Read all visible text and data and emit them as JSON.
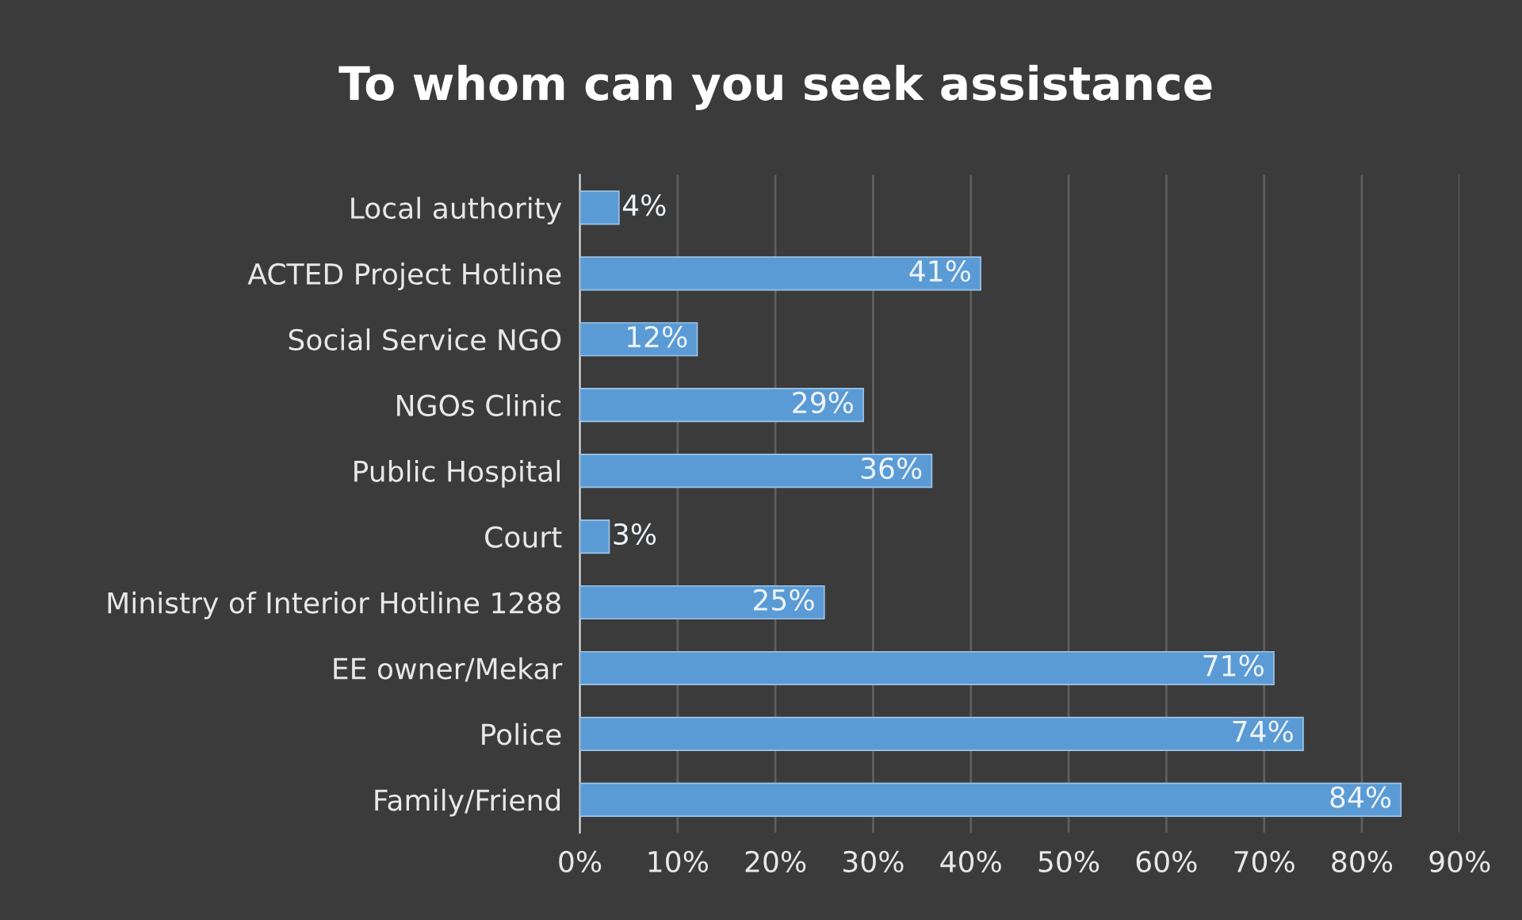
{
  "chart_data": {
    "type": "bar",
    "orientation": "horizontal",
    "title": "To whom can you seek assistance",
    "categories": [
      "Local authority",
      "ACTED Project Hotline",
      "Social Service NGO",
      "NGOs Clinic",
      "Public Hospital",
      "Court",
      "Ministry of Interior Hotline 1288",
      "EE owner/Mekar",
      "Police",
      "Family/Friend"
    ],
    "values": [
      4,
      41,
      12,
      29,
      36,
      3,
      25,
      71,
      74,
      84
    ],
    "value_labels": [
      "4%",
      "41%",
      "12%",
      "29%",
      "36%",
      "3%",
      "25%",
      "71%",
      "74%",
      "84%"
    ],
    "color": "#5b9bd5",
    "xlim": [
      0,
      90
    ],
    "xticks": [
      {
        "value": 0,
        "label": "0%"
      },
      {
        "value": 10,
        "label": "10%"
      },
      {
        "value": 20,
        "label": "20%"
      },
      {
        "value": 30,
        "label": "30%"
      },
      {
        "value": 40,
        "label": "40%"
      },
      {
        "value": 50,
        "label": "50%"
      },
      {
        "value": 60,
        "label": "60%"
      },
      {
        "value": 70,
        "label": "70%"
      },
      {
        "value": 80,
        "label": "80%"
      },
      {
        "value": 90,
        "label": "90%"
      }
    ],
    "grid": "x"
  }
}
